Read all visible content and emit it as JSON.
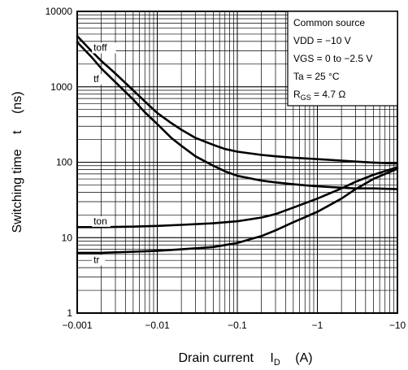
{
  "chart_data": {
    "type": "line",
    "xscale": "log",
    "yscale": "log",
    "xlim": [
      -0.001,
      -10
    ],
    "ylim": [
      1,
      10000
    ],
    "grid": true,
    "x_ticks": [
      {
        "value": -0.001,
        "label": "−0.001"
      },
      {
        "value": -0.01,
        "label": "−0.01"
      },
      {
        "value": -0.1,
        "label": "−0.1"
      },
      {
        "value": -1,
        "label": "−1"
      },
      {
        "value": -10,
        "label": "−10"
      }
    ],
    "y_ticks": [
      {
        "value": 1,
        "label": "1"
      },
      {
        "value": 10,
        "label": "10"
      },
      {
        "value": 100,
        "label": "100"
      },
      {
        "value": 1000,
        "label": "1000"
      },
      {
        "value": 10000,
        "label": "10000"
      }
    ],
    "xlabel": {
      "main": "Drain current",
      "symbol": "I",
      "sub": "D",
      "unit": "(A)"
    },
    "ylabel": {
      "main": "Switching time",
      "symbol": "t",
      "unit": "(ns)"
    },
    "annotation": {
      "lines": [
        {
          "text": "Common source"
        },
        {
          "text": "VDD = −10 V"
        },
        {
          "text": "VGS = 0 to −2.5 V"
        },
        {
          "text": "Ta = 25 °C"
        },
        {
          "prefix": "R",
          "sub": "GS",
          "text": " = 4.7 Ω"
        }
      ]
    },
    "series": [
      {
        "name": "toff",
        "label_at": [
          -0.0016,
          3000
        ],
        "x": [
          -0.001,
          -0.0015,
          -0.002,
          -0.003,
          -0.005,
          -0.007,
          -0.01,
          -0.015,
          -0.02,
          -0.03,
          -0.05,
          -0.07,
          -0.1,
          -0.2,
          -0.3,
          -0.5,
          -1,
          -2,
          -3,
          -5,
          -10
        ],
        "y": [
          4700,
          3000,
          2200,
          1500,
          900,
          640,
          450,
          330,
          270,
          210,
          170,
          150,
          138,
          125,
          120,
          115,
          110,
          105,
          102,
          99,
          96
        ]
      },
      {
        "name": "tf",
        "label_at": [
          -0.0016,
          1150
        ],
        "x": [
          -0.001,
          -0.0015,
          -0.002,
          -0.003,
          -0.005,
          -0.007,
          -0.01,
          -0.015,
          -0.02,
          -0.03,
          -0.05,
          -0.07,
          -0.1,
          -0.2,
          -0.3,
          -0.5,
          -1,
          -2,
          -3,
          -5,
          -10
        ],
        "y": [
          3900,
          2500,
          1750,
          1150,
          680,
          460,
          320,
          210,
          165,
          120,
          90,
          76,
          66,
          57,
          54,
          51,
          48,
          46,
          45,
          45,
          44
        ]
      },
      {
        "name": "ton",
        "label_at": [
          -0.0016,
          15
        ],
        "x": [
          -0.001,
          -0.002,
          -0.005,
          -0.01,
          -0.02,
          -0.05,
          -0.1,
          -0.2,
          -0.3,
          -0.5,
          -1,
          -2,
          -3,
          -5,
          -10
        ],
        "y": [
          13.8,
          13.8,
          14.0,
          14.3,
          14.8,
          15.5,
          16.5,
          18.5,
          20.5,
          25,
          33,
          45,
          55,
          68,
          86
        ]
      },
      {
        "name": "tr",
        "label_at": [
          -0.0016,
          4.6
        ],
        "x": [
          -0.001,
          -0.002,
          -0.005,
          -0.01,
          -0.02,
          -0.05,
          -0.1,
          -0.2,
          -0.3,
          -0.5,
          -1,
          -2,
          -3,
          -5,
          -10
        ],
        "y": [
          6.3,
          6.3,
          6.5,
          6.7,
          7.0,
          7.5,
          8.5,
          10.5,
          12.5,
          16,
          22,
          33,
          44,
          60,
          82
        ]
      }
    ]
  }
}
